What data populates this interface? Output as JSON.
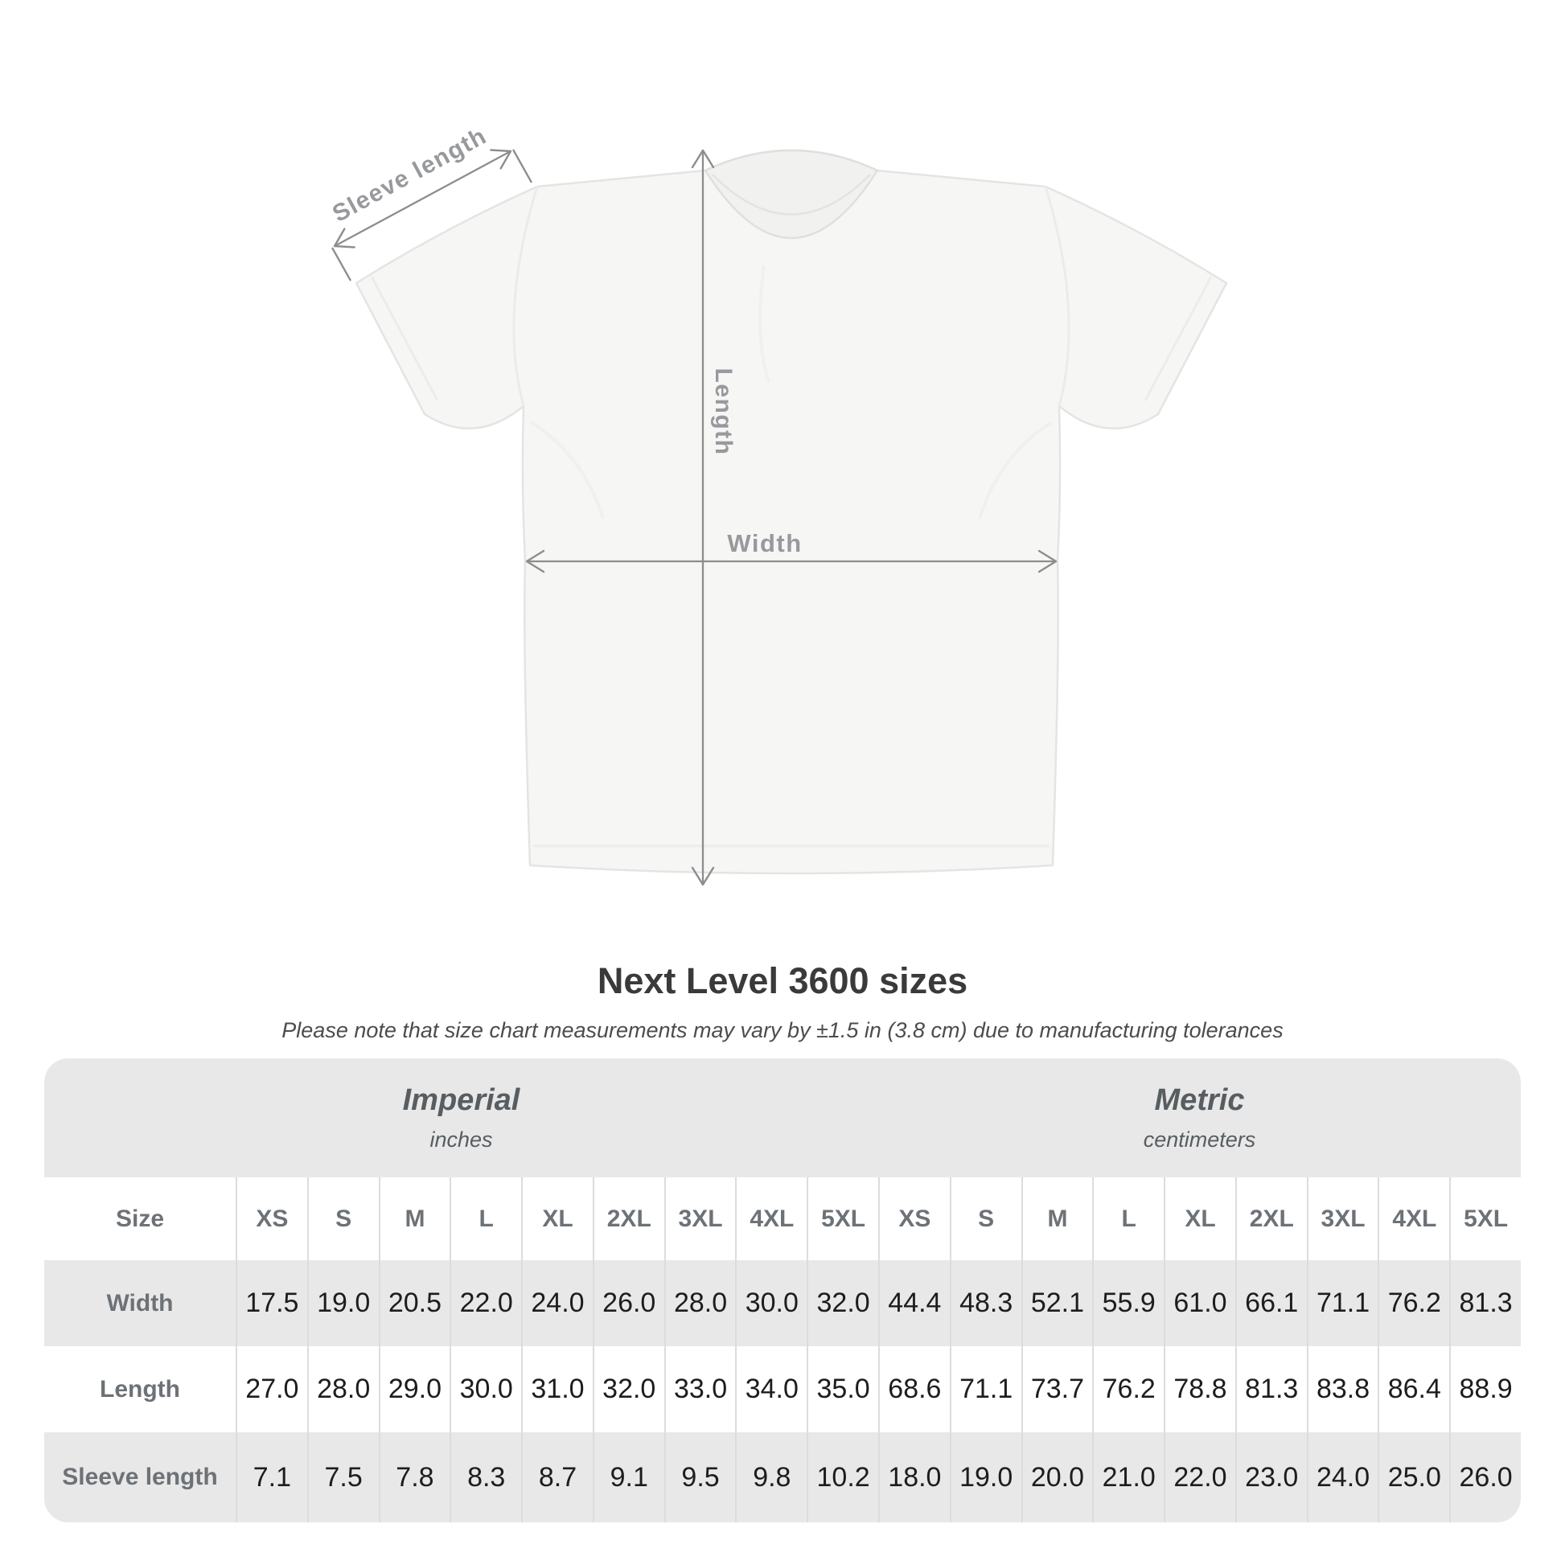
{
  "figure": {
    "sleeve_length_label": "Sleeve length",
    "length_label": "Length",
    "width_label": "Width"
  },
  "title": "Next Level 3600 sizes",
  "subtitle": "Please note that size chart measurements may vary by ±1.5 in (3.8 cm) due to manufacturing tolerances",
  "table": {
    "size_label": "Size",
    "sizes": [
      "XS",
      "S",
      "M",
      "L",
      "XL",
      "2XL",
      "3XL",
      "4XL",
      "5XL"
    ],
    "unit_groups": [
      {
        "name": "Imperial",
        "unit": "inches"
      },
      {
        "name": "Metric",
        "unit": "centimeters"
      }
    ],
    "rows": [
      {
        "label": "Width",
        "values": [
          "17.5",
          "19.0",
          "20.5",
          "22.0",
          "24.0",
          "26.0",
          "28.0",
          "30.0",
          "32.0",
          "44.4",
          "48.3",
          "52.1",
          "55.9",
          "61.0",
          "66.1",
          "71.1",
          "76.2",
          "81.3"
        ]
      },
      {
        "label": "Length",
        "values": [
          "27.0",
          "28.0",
          "29.0",
          "30.0",
          "31.0",
          "32.0",
          "33.0",
          "34.0",
          "35.0",
          "68.6",
          "71.1",
          "73.7",
          "76.2",
          "78.8",
          "81.3",
          "83.8",
          "86.4",
          "88.9"
        ]
      },
      {
        "label": "Sleeve length",
        "values": [
          "7.1",
          "7.5",
          "7.8",
          "8.3",
          "8.7",
          "9.1",
          "9.5",
          "9.8",
          "10.2",
          "18.0",
          "19.0",
          "20.0",
          "21.0",
          "22.0",
          "23.0",
          "24.0",
          "25.0",
          "26.0"
        ]
      }
    ]
  },
  "chart_data": {
    "type": "table",
    "title": "Next Level 3600 sizes",
    "note": "Size chart measurements may vary by ±1.5 in (3.8 cm) due to manufacturing tolerances",
    "columns": [
      "XS",
      "S",
      "M",
      "L",
      "XL",
      "2XL",
      "3XL",
      "4XL",
      "5XL"
    ],
    "unit_groups": [
      "Imperial (inches)",
      "Metric (centimeters)"
    ],
    "rows": [
      {
        "label": "Width",
        "imperial_in": [
          17.5,
          19.0,
          20.5,
          22.0,
          24.0,
          26.0,
          28.0,
          30.0,
          32.0
        ],
        "metric_cm": [
          44.4,
          48.3,
          52.1,
          55.9,
          61.0,
          66.1,
          71.1,
          76.2,
          81.3
        ]
      },
      {
        "label": "Length",
        "imperial_in": [
          27.0,
          28.0,
          29.0,
          30.0,
          31.0,
          32.0,
          33.0,
          34.0,
          35.0
        ],
        "metric_cm": [
          68.6,
          71.1,
          73.7,
          76.2,
          78.8,
          81.3,
          83.8,
          86.4,
          88.9
        ]
      },
      {
        "label": "Sleeve length",
        "imperial_in": [
          7.1,
          7.5,
          7.8,
          8.3,
          8.7,
          9.1,
          9.5,
          9.8,
          10.2
        ],
        "metric_cm": [
          18.0,
          19.0,
          20.0,
          21.0,
          22.0,
          23.0,
          24.0,
          25.0,
          26.0
        ]
      }
    ]
  },
  "colors": {
    "band_gray": "#e8e8e8",
    "separator": "#dcdcdc",
    "value_text": "#1d1d1d",
    "header_text": "#6d7277",
    "unit_text": "#575d61",
    "title_text": "#3a3a3a",
    "subtitle_text": "#4c4c4c",
    "dimension_line": "#8d8d8d",
    "dimension_label": "#97999c",
    "shirt_fill": "#f6f6f5",
    "shirt_outline": "#e4e4e3"
  }
}
